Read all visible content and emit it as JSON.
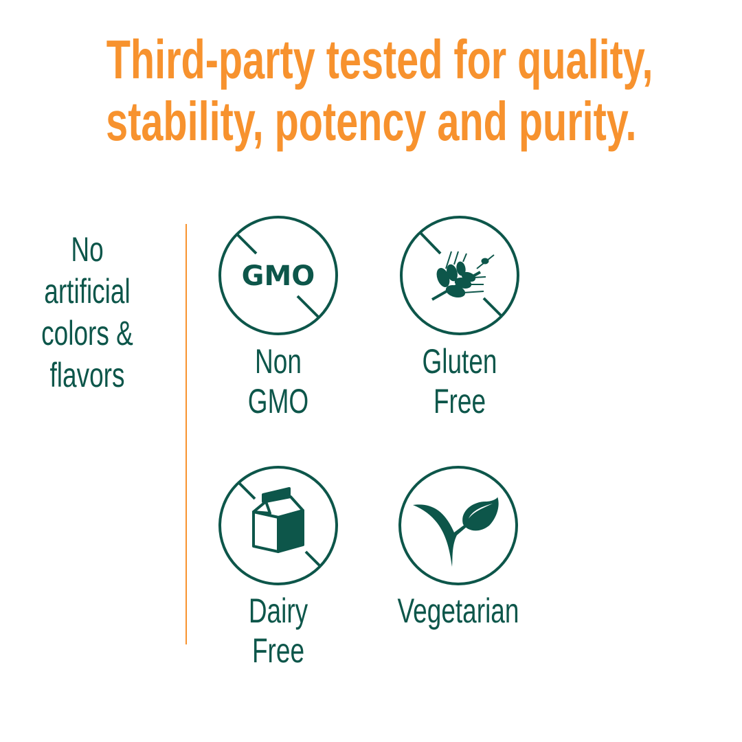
{
  "headline": {
    "line1": "Third-party tested for quality,",
    "line2": "stability, potency and purity."
  },
  "side_note": {
    "lines": [
      "No",
      "artificial",
      "colors &",
      "flavors"
    ]
  },
  "badges": [
    {
      "icon": "no-gmo-icon",
      "icon_text": "GMO",
      "lines": [
        "Non",
        "GMO"
      ]
    },
    {
      "icon": "no-wheat-icon",
      "lines": [
        "Gluten",
        "Free"
      ]
    },
    {
      "icon": "no-milk-carton-icon",
      "lines": [
        "Dairy",
        "Free"
      ]
    },
    {
      "icon": "vegetarian-leaf-icon",
      "lines": [
        "Vegetarian"
      ]
    }
  ],
  "colors": {
    "accent": "#f7922e",
    "primary": "#0d564a"
  }
}
